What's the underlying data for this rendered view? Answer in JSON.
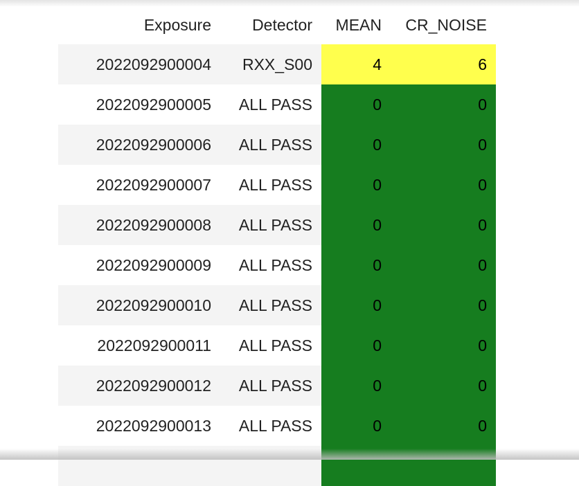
{
  "columns": [
    "Exposure",
    "Detector",
    "MEAN",
    "CR_NOISE"
  ],
  "colors": {
    "warn": "#ffff4d",
    "pass": "#167d1f"
  },
  "rows": [
    {
      "exposure": "2022092900004",
      "detector": "RXX_S00",
      "mean": "4",
      "cr_noise": "6",
      "status": "warn"
    },
    {
      "exposure": "2022092900005",
      "detector": "ALL PASS",
      "mean": "0",
      "cr_noise": "0",
      "status": "pass"
    },
    {
      "exposure": "2022092900006",
      "detector": "ALL PASS",
      "mean": "0",
      "cr_noise": "0",
      "status": "pass"
    },
    {
      "exposure": "2022092900007",
      "detector": "ALL PASS",
      "mean": "0",
      "cr_noise": "0",
      "status": "pass"
    },
    {
      "exposure": "2022092900008",
      "detector": "ALL PASS",
      "mean": "0",
      "cr_noise": "0",
      "status": "pass"
    },
    {
      "exposure": "2022092900009",
      "detector": "ALL PASS",
      "mean": "0",
      "cr_noise": "0",
      "status": "pass"
    },
    {
      "exposure": "2022092900010",
      "detector": "ALL PASS",
      "mean": "0",
      "cr_noise": "0",
      "status": "pass"
    },
    {
      "exposure": "2022092900011",
      "detector": "ALL PASS",
      "mean": "0",
      "cr_noise": "0",
      "status": "pass"
    },
    {
      "exposure": "2022092900012",
      "detector": "ALL PASS",
      "mean": "0",
      "cr_noise": "0",
      "status": "pass"
    },
    {
      "exposure": "2022092900013",
      "detector": "ALL PASS",
      "mean": "0",
      "cr_noise": "0",
      "status": "pass"
    },
    {
      "exposure": "",
      "detector": "",
      "mean": "",
      "cr_noise": "",
      "status": "pass"
    }
  ]
}
